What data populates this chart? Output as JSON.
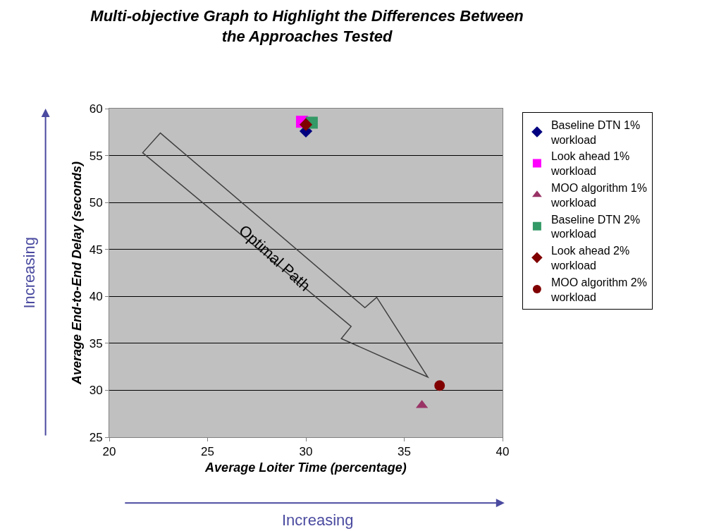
{
  "chart_data": {
    "type": "scatter",
    "title": "Multi-objective Graph to Highlight the Differences Between the Approaches Tested",
    "xlabel": "Average Loiter Time (percentage)",
    "ylabel": "Average End-to-End Delay (seconds)",
    "xlim": [
      20,
      40
    ],
    "xticks": [
      20,
      25,
      30,
      35,
      40
    ],
    "ylim": [
      25,
      60
    ],
    "yticks": [
      25,
      30,
      35,
      40,
      45,
      50,
      55,
      60
    ],
    "grid": "y",
    "legend": "right",
    "series": [
      {
        "name": "Baseline DTN 1% workload",
        "color": "#000080",
        "marker": "diamond",
        "x": [
          30.0
        ],
        "values": [
          57.6
        ]
      },
      {
        "name": "Look ahead 1% workload",
        "color": "#ff00ff",
        "marker": "square",
        "x": [
          29.8
        ],
        "values": [
          58.6
        ]
      },
      {
        "name": "MOO algorithm 1% workload",
        "color": "#993366",
        "marker": "triangle",
        "x": [
          35.9
        ],
        "values": [
          28.4
        ]
      },
      {
        "name": "Baseline DTN 2% workload",
        "color": "#339966",
        "marker": "square",
        "x": [
          30.3
        ],
        "values": [
          58.5
        ]
      },
      {
        "name": "Look ahead 2% workload",
        "color": "#800000",
        "marker": "diamond",
        "x": [
          30.0
        ],
        "values": [
          58.3
        ]
      },
      {
        "name": "MOO algorithm 2% workload",
        "color": "#800000",
        "marker": "circle",
        "x": [
          36.8
        ],
        "values": [
          30.5
        ]
      }
    ],
    "annotations": [
      "Optimal Path",
      "Increasing",
      "Increasing"
    ]
  }
}
